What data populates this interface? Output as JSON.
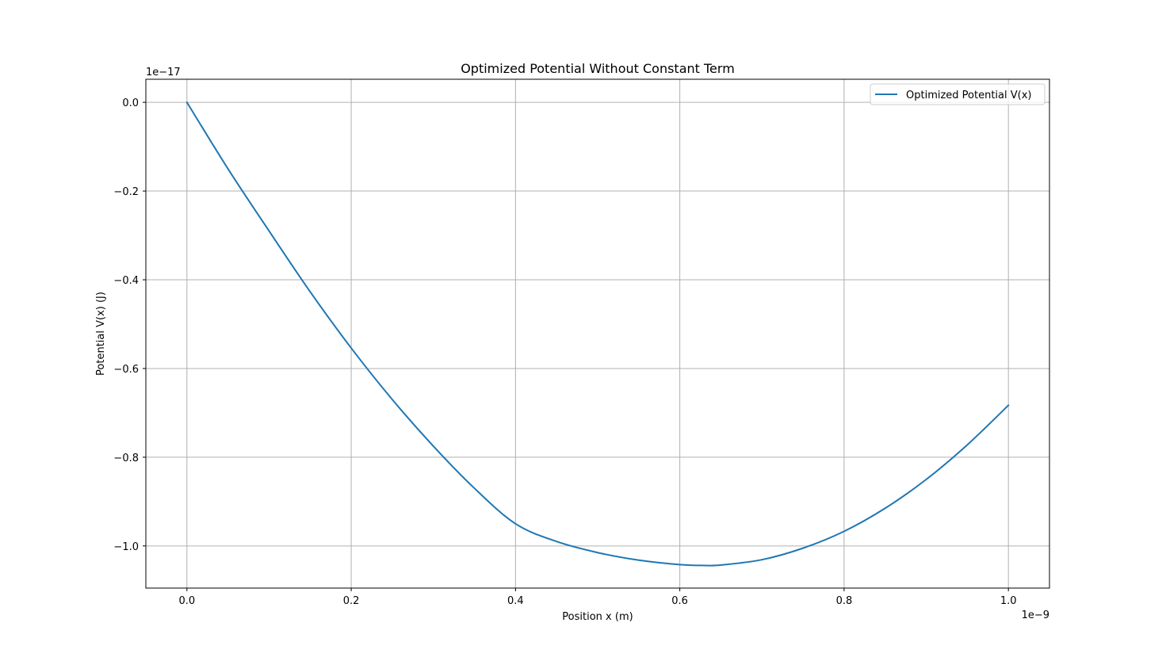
{
  "chart_data": {
    "type": "line",
    "title": "Optimized Potential Without Constant Term",
    "xlabel": "Position x (m)",
    "ylabel": "Potential V(x) (J)",
    "x_offset_text": "1e−9",
    "y_offset_text": "1e−17",
    "xlim": [
      -0.05,
      1.05
    ],
    "ylim": [
      -1.095,
      0.052
    ],
    "xticks": [
      0.0,
      0.2,
      0.4,
      0.6,
      0.8,
      1.0
    ],
    "xtick_labels": [
      "0.0",
      "0.2",
      "0.4",
      "0.6",
      "0.8",
      "1.0"
    ],
    "yticks": [
      0.0,
      -0.2,
      -0.4,
      -0.6,
      -0.8,
      -1.0
    ],
    "ytick_labels": [
      "0.0",
      "−0.2",
      "−0.4",
      "−0.6",
      "−0.8",
      "−1.0"
    ],
    "grid": true,
    "legend_position": "upper right",
    "series": [
      {
        "name": "Optimized Potential V(x)",
        "color": "#1f77b4",
        "x": [
          0.0,
          0.05,
          0.1,
          0.15,
          0.2,
          0.25,
          0.3,
          0.35,
          0.4,
          0.45,
          0.5,
          0.55,
          0.6,
          0.63,
          0.65,
          0.7,
          0.75,
          0.8,
          0.85,
          0.9,
          0.95,
          1.0
        ],
        "y": [
          0.0,
          -0.15,
          -0.29,
          -0.427,
          -0.554,
          -0.67,
          -0.775,
          -0.87,
          -0.95,
          -0.99,
          -1.015,
          -1.032,
          -1.042,
          -1.044,
          -1.043,
          -1.031,
          -1.005,
          -0.967,
          -0.915,
          -0.85,
          -0.772,
          -0.683
        ]
      }
    ]
  }
}
